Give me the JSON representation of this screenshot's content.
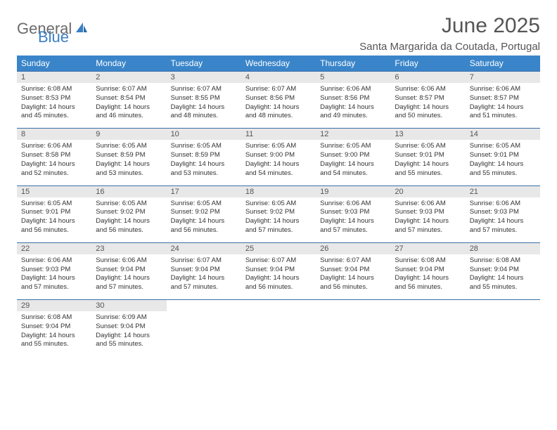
{
  "brand": {
    "part1": "General",
    "part2": "Blue"
  },
  "title": "June 2025",
  "location": "Santa Margarida da Coutada, Portugal",
  "colors": {
    "header_bg": "#3a85c9",
    "header_text": "#ffffff",
    "daynum_bg": "#e8e8e8",
    "row_divider": "#3a6fa8",
    "brand_gray": "#6b6b6b",
    "brand_blue": "#3a7fc4",
    "text": "#333333",
    "title_color": "#555555"
  },
  "typography": {
    "title_fontsize": 30,
    "location_fontsize": 15,
    "header_fontsize": 12,
    "daynum_fontsize": 11,
    "body_fontsize": 9.5
  },
  "weekdays": [
    "Sunday",
    "Monday",
    "Tuesday",
    "Wednesday",
    "Thursday",
    "Friday",
    "Saturday"
  ],
  "days": [
    {
      "n": "1",
      "sunrise": "6:08 AM",
      "sunset": "8:53 PM",
      "dl1": "Daylight: 14 hours",
      "dl2": "and 45 minutes."
    },
    {
      "n": "2",
      "sunrise": "6:07 AM",
      "sunset": "8:54 PM",
      "dl1": "Daylight: 14 hours",
      "dl2": "and 46 minutes."
    },
    {
      "n": "3",
      "sunrise": "6:07 AM",
      "sunset": "8:55 PM",
      "dl1": "Daylight: 14 hours",
      "dl2": "and 48 minutes."
    },
    {
      "n": "4",
      "sunrise": "6:07 AM",
      "sunset": "8:56 PM",
      "dl1": "Daylight: 14 hours",
      "dl2": "and 48 minutes."
    },
    {
      "n": "5",
      "sunrise": "6:06 AM",
      "sunset": "8:56 PM",
      "dl1": "Daylight: 14 hours",
      "dl2": "and 49 minutes."
    },
    {
      "n": "6",
      "sunrise": "6:06 AM",
      "sunset": "8:57 PM",
      "dl1": "Daylight: 14 hours",
      "dl2": "and 50 minutes."
    },
    {
      "n": "7",
      "sunrise": "6:06 AM",
      "sunset": "8:57 PM",
      "dl1": "Daylight: 14 hours",
      "dl2": "and 51 minutes."
    },
    {
      "n": "8",
      "sunrise": "6:06 AM",
      "sunset": "8:58 PM",
      "dl1": "Daylight: 14 hours",
      "dl2": "and 52 minutes."
    },
    {
      "n": "9",
      "sunrise": "6:05 AM",
      "sunset": "8:59 PM",
      "dl1": "Daylight: 14 hours",
      "dl2": "and 53 minutes."
    },
    {
      "n": "10",
      "sunrise": "6:05 AM",
      "sunset": "8:59 PM",
      "dl1": "Daylight: 14 hours",
      "dl2": "and 53 minutes."
    },
    {
      "n": "11",
      "sunrise": "6:05 AM",
      "sunset": "9:00 PM",
      "dl1": "Daylight: 14 hours",
      "dl2": "and 54 minutes."
    },
    {
      "n": "12",
      "sunrise": "6:05 AM",
      "sunset": "9:00 PM",
      "dl1": "Daylight: 14 hours",
      "dl2": "and 54 minutes."
    },
    {
      "n": "13",
      "sunrise": "6:05 AM",
      "sunset": "9:01 PM",
      "dl1": "Daylight: 14 hours",
      "dl2": "and 55 minutes."
    },
    {
      "n": "14",
      "sunrise": "6:05 AM",
      "sunset": "9:01 PM",
      "dl1": "Daylight: 14 hours",
      "dl2": "and 55 minutes."
    },
    {
      "n": "15",
      "sunrise": "6:05 AM",
      "sunset": "9:01 PM",
      "dl1": "Daylight: 14 hours",
      "dl2": "and 56 minutes."
    },
    {
      "n": "16",
      "sunrise": "6:05 AM",
      "sunset": "9:02 PM",
      "dl1": "Daylight: 14 hours",
      "dl2": "and 56 minutes."
    },
    {
      "n": "17",
      "sunrise": "6:05 AM",
      "sunset": "9:02 PM",
      "dl1": "Daylight: 14 hours",
      "dl2": "and 56 minutes."
    },
    {
      "n": "18",
      "sunrise": "6:05 AM",
      "sunset": "9:02 PM",
      "dl1": "Daylight: 14 hours",
      "dl2": "and 57 minutes."
    },
    {
      "n": "19",
      "sunrise": "6:06 AM",
      "sunset": "9:03 PM",
      "dl1": "Daylight: 14 hours",
      "dl2": "and 57 minutes."
    },
    {
      "n": "20",
      "sunrise": "6:06 AM",
      "sunset": "9:03 PM",
      "dl1": "Daylight: 14 hours",
      "dl2": "and 57 minutes."
    },
    {
      "n": "21",
      "sunrise": "6:06 AM",
      "sunset": "9:03 PM",
      "dl1": "Daylight: 14 hours",
      "dl2": "and 57 minutes."
    },
    {
      "n": "22",
      "sunrise": "6:06 AM",
      "sunset": "9:03 PM",
      "dl1": "Daylight: 14 hours",
      "dl2": "and 57 minutes."
    },
    {
      "n": "23",
      "sunrise": "6:06 AM",
      "sunset": "9:04 PM",
      "dl1": "Daylight: 14 hours",
      "dl2": "and 57 minutes."
    },
    {
      "n": "24",
      "sunrise": "6:07 AM",
      "sunset": "9:04 PM",
      "dl1": "Daylight: 14 hours",
      "dl2": "and 57 minutes."
    },
    {
      "n": "25",
      "sunrise": "6:07 AM",
      "sunset": "9:04 PM",
      "dl1": "Daylight: 14 hours",
      "dl2": "and 56 minutes."
    },
    {
      "n": "26",
      "sunrise": "6:07 AM",
      "sunset": "9:04 PM",
      "dl1": "Daylight: 14 hours",
      "dl2": "and 56 minutes."
    },
    {
      "n": "27",
      "sunrise": "6:08 AM",
      "sunset": "9:04 PM",
      "dl1": "Daylight: 14 hours",
      "dl2": "and 56 minutes."
    },
    {
      "n": "28",
      "sunrise": "6:08 AM",
      "sunset": "9:04 PM",
      "dl1": "Daylight: 14 hours",
      "dl2": "and 55 minutes."
    },
    {
      "n": "29",
      "sunrise": "6:08 AM",
      "sunset": "9:04 PM",
      "dl1": "Daylight: 14 hours",
      "dl2": "and 55 minutes."
    },
    {
      "n": "30",
      "sunrise": "6:09 AM",
      "sunset": "9:04 PM",
      "dl1": "Daylight: 14 hours",
      "dl2": "and 55 minutes."
    }
  ],
  "labels": {
    "sunrise": "Sunrise:",
    "sunset": "Sunset:"
  }
}
